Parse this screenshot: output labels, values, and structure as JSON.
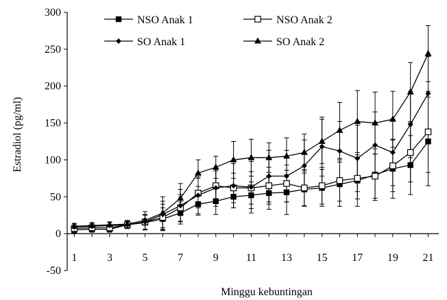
{
  "chart_data": {
    "type": "line",
    "title": "",
    "xlabel": "Minggu kebuntingan",
    "ylabel": "Estradiol (pg/ml)",
    "x": [
      1,
      2,
      3,
      4,
      5,
      6,
      7,
      8,
      9,
      10,
      11,
      12,
      13,
      14,
      15,
      16,
      17,
      18,
      19,
      20,
      21
    ],
    "xticks": [
      1,
      3,
      5,
      7,
      9,
      11,
      13,
      15,
      17,
      19,
      21
    ],
    "xlim": [
      0.6,
      21.6
    ],
    "ylim": [
      -50,
      300
    ],
    "yticks": [
      -50,
      0,
      50,
      100,
      150,
      200,
      250,
      300
    ],
    "legend": "top",
    "series": [
      {
        "name": "NSO Anak 1",
        "marker": "filled-square",
        "values": [
          5,
          6,
          6,
          12,
          15,
          20,
          28,
          40,
          44,
          50,
          52,
          55,
          56,
          60,
          62,
          67,
          72,
          80,
          88,
          93,
          125
        ],
        "errors": [
          4,
          4,
          4,
          5,
          10,
          15,
          15,
          15,
          18,
          15,
          18,
          22,
          30,
          22,
          25,
          30,
          35,
          35,
          40,
          40,
          60
        ]
      },
      {
        "name": "NSO Anak 2",
        "marker": "open-square",
        "values": [
          7,
          8,
          8,
          12,
          16,
          22,
          35,
          55,
          65,
          62,
          62,
          65,
          68,
          62,
          65,
          72,
          75,
          78,
          92,
          110,
          138
        ],
        "errors": [
          4,
          4,
          4,
          5,
          10,
          18,
          18,
          20,
          20,
          20,
          22,
          25,
          25,
          25,
          25,
          28,
          28,
          30,
          35,
          40,
          55
        ]
      },
      {
        "name": "SO Anak 1",
        "marker": "diamond",
        "values": [
          9,
          10,
          11,
          12,
          16,
          26,
          38,
          52,
          62,
          65,
          63,
          78,
          78,
          92,
          118,
          112,
          102,
          120,
          110,
          148,
          190
        ],
        "errors": [
          4,
          4,
          4,
          5,
          10,
          18,
          22,
          25,
          25,
          30,
          35,
          35,
          35,
          35,
          40,
          40,
          45,
          45,
          45,
          45,
          50
        ]
      },
      {
        "name": "SO Anak 2",
        "marker": "filled-triangle",
        "values": [
          10,
          11,
          12,
          13,
          18,
          28,
          48,
          82,
          90,
          100,
          103,
          103,
          105,
          110,
          125,
          140,
          152,
          150,
          155,
          192,
          244
        ],
        "errors": [
          4,
          4,
          4,
          5,
          12,
          22,
          20,
          18,
          15,
          25,
          25,
          20,
          25,
          25,
          30,
          38,
          42,
          42,
          38,
          40,
          38
        ]
      }
    ]
  }
}
